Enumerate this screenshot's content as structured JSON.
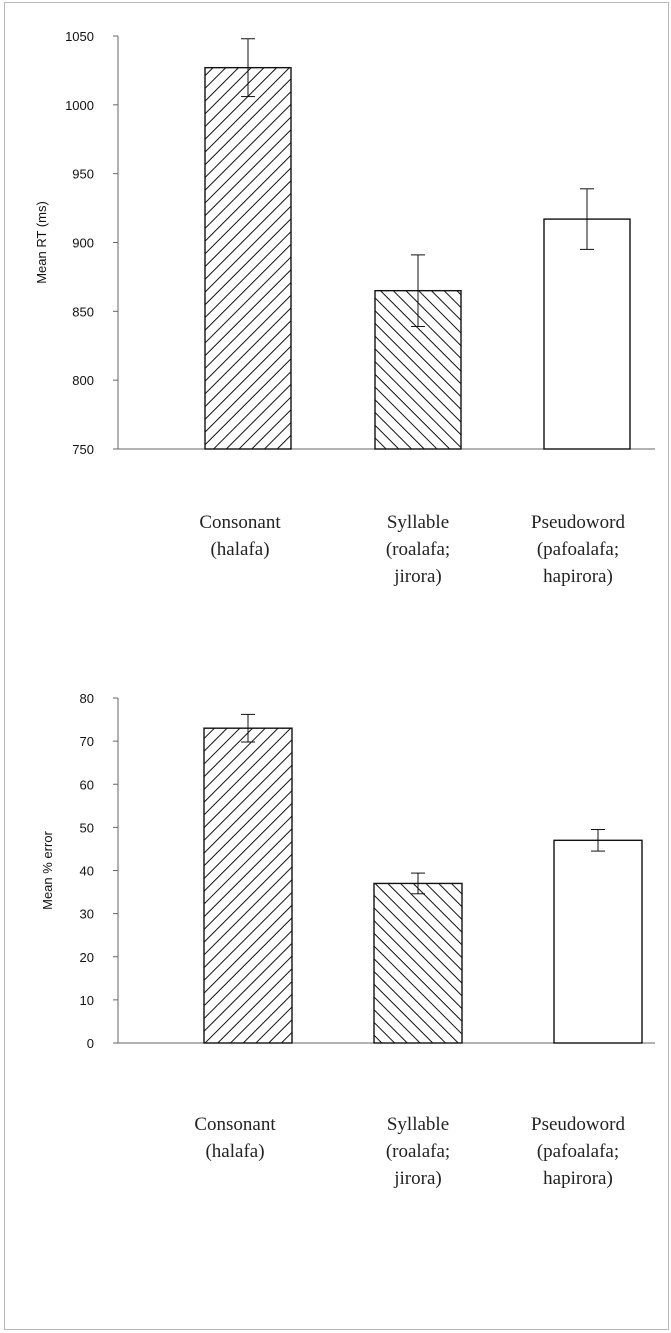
{
  "chart_data": [
    {
      "type": "bar",
      "ylabel": "Mean RT (ms)",
      "ylim": [
        750,
        1050
      ],
      "yticks": [
        750,
        800,
        850,
        900,
        950,
        1000,
        1050
      ],
      "categories": [
        [
          "Consonant",
          "(halafa)"
        ],
        [
          "Syllable",
          "(roalafa;",
          "jirora)"
        ],
        [
          "Pseudoword",
          "(pafoalafa;",
          "hapirora)"
        ]
      ],
      "values": [
        1027,
        865,
        917
      ],
      "errors": [
        21,
        26,
        22
      ],
      "patterns": [
        "hatch-forward",
        "hatch-backward",
        "none"
      ],
      "grid": false
    },
    {
      "type": "bar",
      "ylabel": "Mean % error",
      "ylim": [
        0,
        80
      ],
      "yticks": [
        0,
        10,
        20,
        30,
        40,
        50,
        60,
        70,
        80
      ],
      "categories": [
        [
          "Consonant",
          "(halafa)"
        ],
        [
          "Syllable",
          "(roalafa;",
          "jirora)"
        ],
        [
          "Pseudoword",
          "(pafoalafa;",
          "hapirora)"
        ]
      ],
      "values": [
        73,
        37,
        47
      ],
      "errors": [
        3.2,
        2.4,
        2.5
      ],
      "patterns": [
        "hatch-forward",
        "hatch-backward",
        "none"
      ],
      "grid": false
    }
  ]
}
